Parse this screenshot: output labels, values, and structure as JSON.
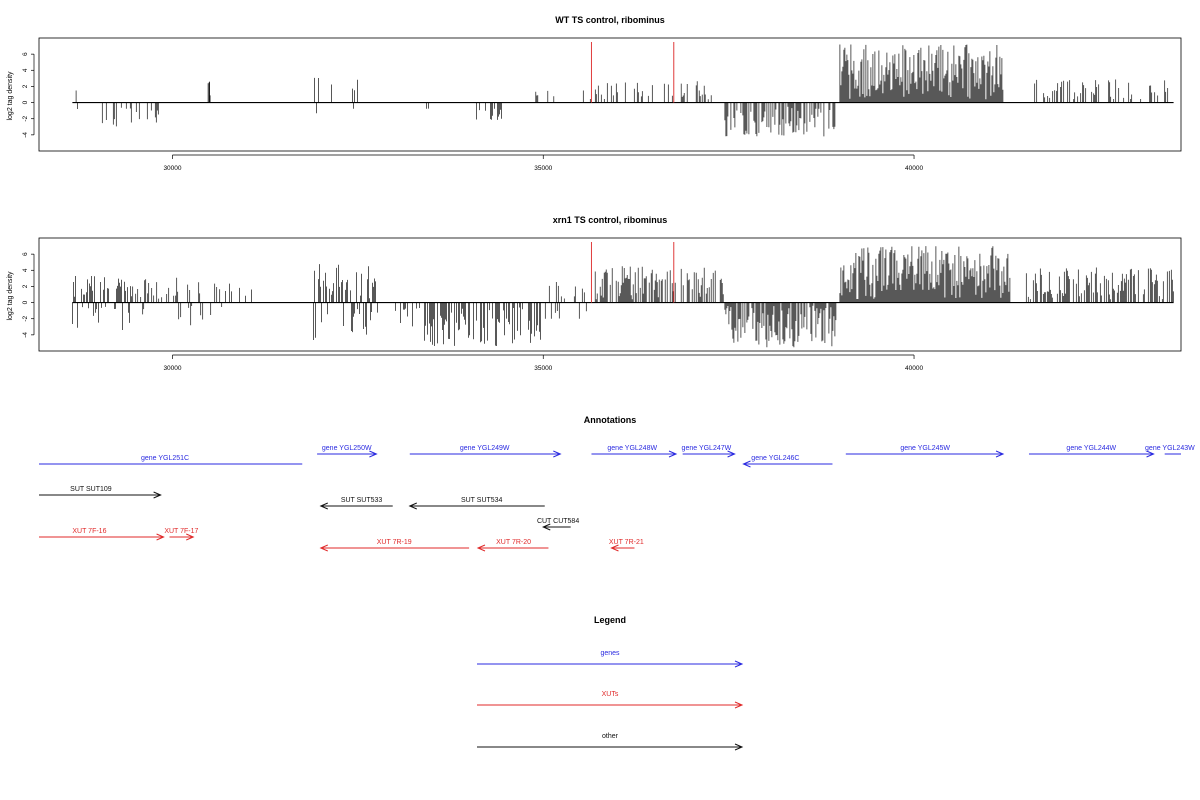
{
  "chart_data": [
    {
      "type": "bar",
      "title": "WT TS control, ribominus",
      "ylabel": "log2 tag density",
      "xlim": [
        28200,
        43600
      ],
      "ylim": [
        -6,
        8
      ],
      "xticks": [
        30000,
        35000,
        40000
      ],
      "yticks": [
        -4,
        -2,
        0,
        2,
        4,
        6
      ],
      "marker_lines": [
        35650,
        36760
      ],
      "marker_color": "#e03a3a",
      "regions": [
        {
          "from": 28650,
          "to": 28950,
          "sign": "mixed",
          "density": 0.05,
          "amp": 1.6,
          "bars": [
            [
              28700,
              1.5
            ],
            [
              28720,
              -0.8
            ]
          ]
        },
        {
          "from": 29000,
          "to": 30000,
          "sign": "minus",
          "density": 0.2,
          "amp": 3.0
        },
        {
          "from": 30480,
          "to": 30520,
          "sign": "plus",
          "density": 1,
          "amp": 2.6,
          "bars": [
            [
              30500,
              2.6
            ]
          ]
        },
        {
          "from": 31900,
          "to": 32600,
          "sign": "mixed",
          "density": 0.25,
          "amp": 3.2
        },
        {
          "from": 32900,
          "to": 33500,
          "sign": "minus",
          "density": 0.06,
          "amp": 1.5
        },
        {
          "from": 34100,
          "to": 34500,
          "sign": "minus",
          "density": 0.3,
          "amp": 2.2
        },
        {
          "from": 34900,
          "to": 35150,
          "sign": "mixed",
          "density": 0.2,
          "amp": 1.8
        },
        {
          "from": 35500,
          "to": 36800,
          "sign": "plus",
          "density": 0.25,
          "amp": 2.6
        },
        {
          "from": 36820,
          "to": 37400,
          "sign": "plus",
          "density": 0.25,
          "amp": 2.8
        },
        {
          "from": 37450,
          "to": 38950,
          "sign": "minus",
          "density": 0.6,
          "amp": 4.2
        },
        {
          "from": 39000,
          "to": 41200,
          "sign": "plus",
          "density": 1.0,
          "amp": 7.2
        },
        {
          "from": 41600,
          "to": 43500,
          "sign": "plus",
          "density": 0.3,
          "amp": 3.0
        }
      ]
    },
    {
      "type": "bar",
      "title": "xrn1 TS control, ribominus",
      "ylabel": "log2 tag density",
      "xlim": [
        28200,
        43600
      ],
      "ylim": [
        -6,
        8
      ],
      "xticks": [
        30000,
        35000,
        40000
      ],
      "yticks": [
        -4,
        -2,
        0,
        2,
        4,
        6
      ],
      "marker_lines": [
        35650,
        36760
      ],
      "marker_color": "#e03a3a",
      "regions": [
        {
          "from": 28650,
          "to": 29450,
          "sign": "mixed",
          "density": 0.6,
          "amp": 3.6
        },
        {
          "from": 29450,
          "to": 30700,
          "sign": "mixed",
          "density": 0.35,
          "amp": 3.4
        },
        {
          "from": 30700,
          "to": 31100,
          "sign": "plus",
          "density": 0.15,
          "amp": 2.4
        },
        {
          "from": 31900,
          "to": 32800,
          "sign": "mixed",
          "density": 0.65,
          "amp": 4.8
        },
        {
          "from": 32900,
          "to": 33400,
          "sign": "minus",
          "density": 0.25,
          "amp": 3.0
        },
        {
          "from": 33400,
          "to": 35000,
          "sign": "minus",
          "density": 0.55,
          "amp": 5.4
        },
        {
          "from": 35000,
          "to": 35600,
          "sign": "mixed",
          "density": 0.4,
          "amp": 2.6
        },
        {
          "from": 35700,
          "to": 36800,
          "sign": "plus",
          "density": 0.7,
          "amp": 4.6
        },
        {
          "from": 36820,
          "to": 37450,
          "sign": "plus",
          "density": 0.55,
          "amp": 4.4
        },
        {
          "from": 37450,
          "to": 38950,
          "sign": "minus",
          "density": 0.85,
          "amp": 5.6
        },
        {
          "from": 39000,
          "to": 41300,
          "sign": "plus",
          "density": 1.0,
          "amp": 7.0
        },
        {
          "from": 41500,
          "to": 43500,
          "sign": "plus",
          "density": 0.6,
          "amp": 4.4
        }
      ]
    }
  ],
  "annotations": {
    "title": "Annotations",
    "colors": {
      "genes": "#2a2ae0",
      "XUTs": "#e02a2a",
      "other": "#111111"
    },
    "items": [
      {
        "label": "gene YGL251C",
        "kind": "genes",
        "row": 0,
        "x1": 28200,
        "x2": 31750,
        "dir": "none",
        "label_x": 29900
      },
      {
        "label": "gene YGL250W",
        "kind": "genes",
        "row": 1,
        "x1": 31950,
        "x2": 32750,
        "dir": "right",
        "label_x": 32350
      },
      {
        "label": "gene YGL249W",
        "kind": "genes",
        "row": 1,
        "x1": 33200,
        "x2": 35230,
        "dir": "right",
        "label_x": 34210
      },
      {
        "label": "gene YGL248W",
        "kind": "genes",
        "row": 1,
        "x1": 35650,
        "x2": 36790,
        "dir": "right",
        "label_x": 36200
      },
      {
        "label": "gene YGL247W",
        "kind": "genes",
        "row": 1,
        "x1": 36880,
        "x2": 37580,
        "dir": "right",
        "label_x": 37200
      },
      {
        "label": "gene YGL246C",
        "kind": "genes",
        "row": 2,
        "x1": 37700,
        "x2": 38900,
        "dir": "left",
        "label_x": 38130
      },
      {
        "label": "gene YGL245W",
        "kind": "genes",
        "row": 1,
        "x1": 39080,
        "x2": 41200,
        "dir": "right",
        "label_x": 40150
      },
      {
        "label": "gene YGL244W",
        "kind": "genes",
        "row": 1,
        "x1": 41550,
        "x2": 43230,
        "dir": "right",
        "label_x": 42390
      },
      {
        "label": "gene YGL243W",
        "kind": "genes",
        "row": 1,
        "x1": 43380,
        "x2": 43600,
        "dir": "none",
        "label_x": 43450
      },
      {
        "label": "SUT SUT109",
        "kind": "other",
        "row": 3,
        "x1": 28200,
        "x2": 29840,
        "dir": "right",
        "label_x": 28900
      },
      {
        "label": "SUT SUT533",
        "kind": "other",
        "row": 4,
        "x1": 32000,
        "x2": 32970,
        "dir": "left",
        "label_x": 32550
      },
      {
        "label": "SUT SUT534",
        "kind": "other",
        "row": 4,
        "x1": 33200,
        "x2": 35020,
        "dir": "left",
        "label_x": 34170
      },
      {
        "label": "CUT CUT584",
        "kind": "other",
        "row": 5,
        "x1": 35000,
        "x2": 35370,
        "dir": "left",
        "label_x": 35200
      },
      {
        "label": "XUT 7F-16",
        "kind": "XUTs",
        "row": 6,
        "x1": 28200,
        "x2": 29880,
        "dir": "right",
        "label_x": 28880
      },
      {
        "label": "XUT 7F-17",
        "kind": "XUTs",
        "row": 6,
        "x1": 29960,
        "x2": 30280,
        "dir": "right",
        "label_x": 30120
      },
      {
        "label": "XUT 7R-19",
        "kind": "XUTs",
        "row": 7,
        "x1": 32000,
        "x2": 34000,
        "dir": "left",
        "label_x": 32990
      },
      {
        "label": "XUT 7R-20",
        "kind": "XUTs",
        "row": 7,
        "x1": 34120,
        "x2": 35070,
        "dir": "left",
        "label_x": 34600
      },
      {
        "label": "XUT 7R-21",
        "kind": "XUTs",
        "row": 7,
        "x1": 35920,
        "x2": 36230,
        "dir": "left",
        "label_x": 36120
      }
    ]
  },
  "legend": {
    "title": "Legend",
    "entries": [
      {
        "label": "genes",
        "kind": "genes"
      },
      {
        "label": "XUTs",
        "kind": "XUTs"
      },
      {
        "label": "other",
        "kind": "other"
      }
    ]
  }
}
